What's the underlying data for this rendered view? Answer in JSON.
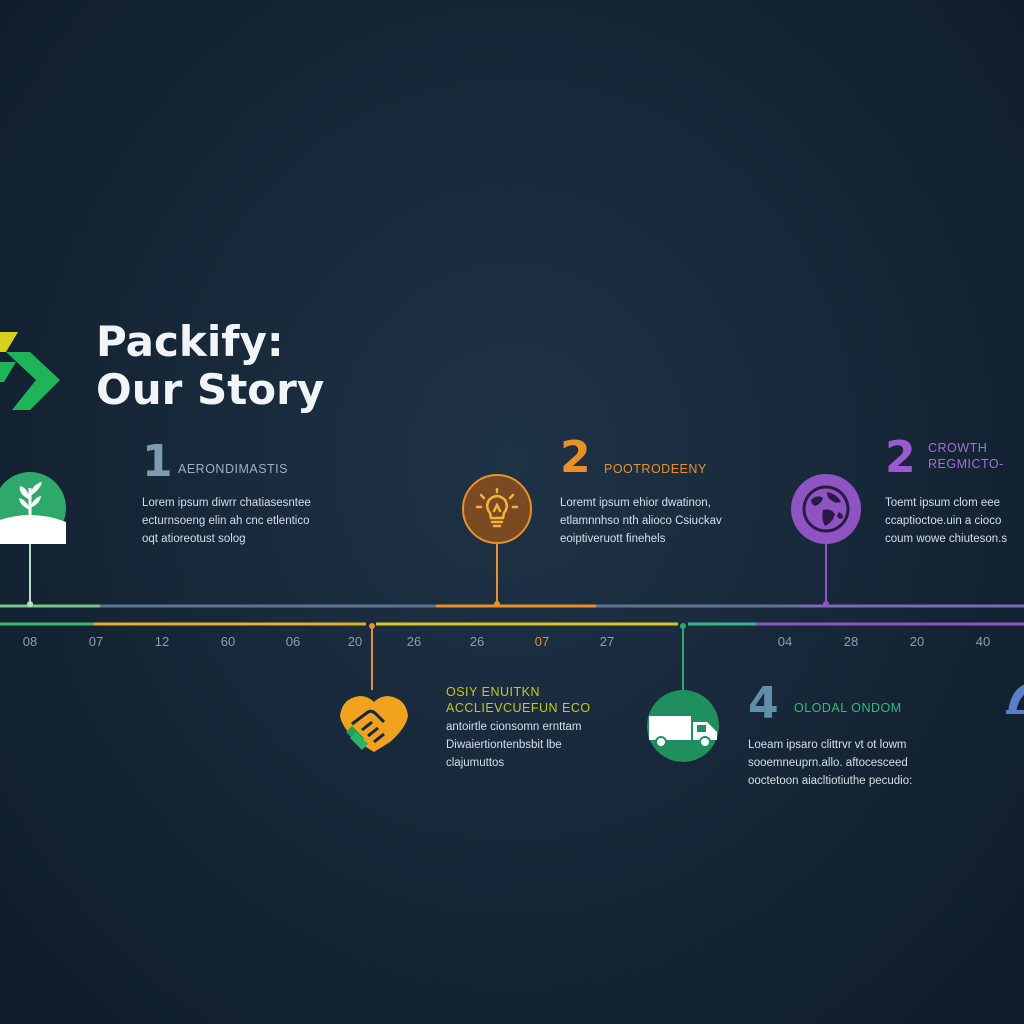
{
  "header": {
    "title_line1": "Packify:",
    "title_line2": "Our Story"
  },
  "milestones": [
    {
      "number": "1",
      "label": "AERONDIMASTIS",
      "description": "Lorem ipsum diwrr chatiasesntee\necturnsoeng elin ah cnc etlentico\noqt atioreotust solog",
      "color": "#2fa86c",
      "icon": "sprout-icon"
    },
    {
      "number": "2",
      "label": "POOTRODEENY",
      "description": "Loremt ipsum ehior dwatinon,\netlamnnhso nth alioco Csiuckav\neoiptiveruott finehels",
      "color": "#e8902a",
      "icon": "lightbulb-icon"
    },
    {
      "number": "2",
      "label": "CROWTH\nREGMICTO-",
      "description": "Toemt ipsum clom eee\nccaptioctoe.uin a cioco\ncoum wowe chiuteson.s",
      "color": "#8e55c2",
      "icon": "globe-icon"
    },
    {
      "number": "",
      "label": "OSIY ENUITKN\nACCLIEVCUEFUN ECO",
      "description": "antoirtle cionsomn ernttam\nDiwaiertiontenbsbit lbe\nclajumuttos",
      "color": "#c9c81e",
      "icon": "handshake-icon"
    },
    {
      "number": "",
      "label": "",
      "description": "",
      "color": "#1f8f5e",
      "icon": "truck-icon"
    },
    {
      "number": "4",
      "label": "OLODAL ONDOM",
      "description": "Loeam ipsaro clittrvr vt ot lowm\nsooemneuprn.allo. aftocesceed\nooctetoon aiacltiotiuthe pecudio:",
      "color": "#2fa86c",
      "icon": "arch-icon"
    }
  ],
  "timeline_ticks": [
    "08",
    "07",
    "12",
    "60",
    "06",
    "20",
    "26",
    "26",
    "07",
    "27",
    "04",
    "28",
    "20",
    "40"
  ],
  "colors": {
    "green": "#2fa86c",
    "orange": "#e8902a",
    "yellow": "#c9c81e",
    "purple": "#8e55c2",
    "blue_gray": "#5f7690",
    "teal": "#3aa88a"
  }
}
